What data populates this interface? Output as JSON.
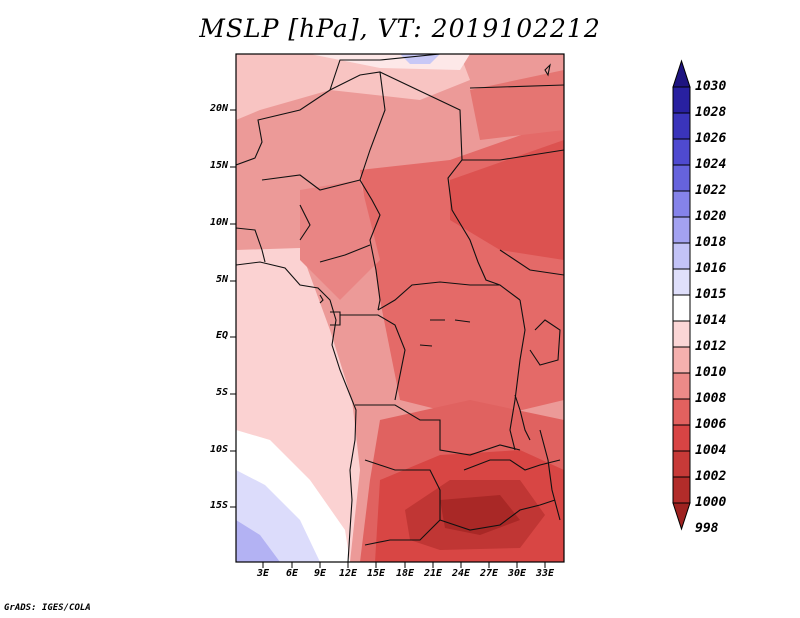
{
  "title": "MSLP [hPa], VT: 2019102212",
  "credit": "GrADS: IGES/COLA",
  "map": {
    "lat_ticks": [
      "20N",
      "15N",
      "10N",
      "5N",
      "EQ",
      "5S",
      "10S",
      "15S"
    ],
    "lon_ticks": [
      "3E",
      "6E",
      "9E",
      "12E",
      "15E",
      "18E",
      "21E",
      "24E",
      "27E",
      "30E",
      "33E"
    ]
  },
  "colorbar": {
    "labels": [
      "1030",
      "1028",
      "1026",
      "1024",
      "1022",
      "1020",
      "1018",
      "1016",
      "1015",
      "1014",
      "1012",
      "1010",
      "1008",
      "1006",
      "1004",
      "1002",
      "1000",
      "998"
    ],
    "colors": [
      "#1e1480",
      "#2820a0",
      "#3a34bb",
      "#4f4ad0",
      "#6663dd",
      "#8583ea",
      "#a3a2f1",
      "#c3c3f7",
      "#dfdffb",
      "#ffffff",
      "#fbd6d6",
      "#f5b0ae",
      "#ec8a88",
      "#e2615f",
      "#d84444",
      "#c73a38",
      "#b22c2a",
      "#9e2220"
    ]
  }
}
